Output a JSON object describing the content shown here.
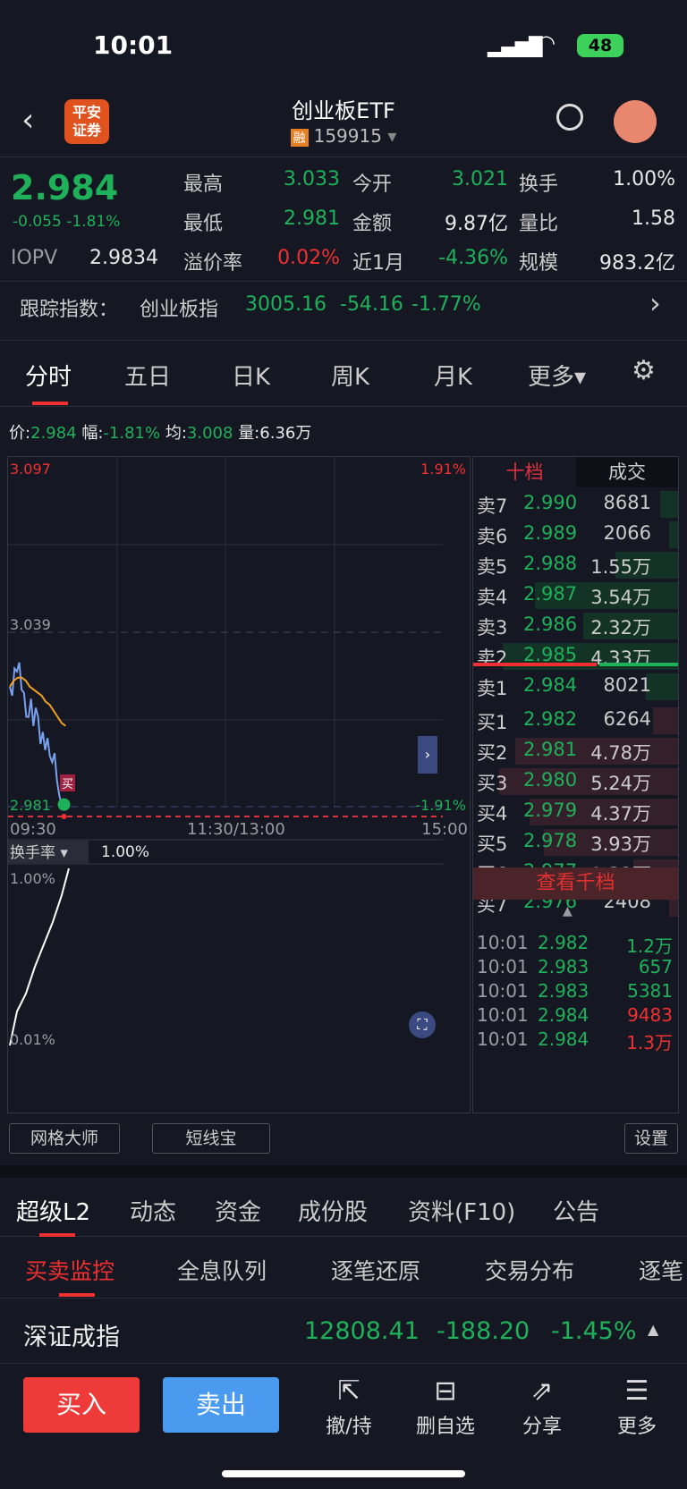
{
  "status": {
    "time": "10:01",
    "battery": "48"
  },
  "header": {
    "broker_logo": "平安证券",
    "title": "创业板ETF",
    "tag": "融",
    "code": "159915"
  },
  "quote": {
    "price": "2.984",
    "change": "-0.055",
    "change_pct": "-1.81%",
    "fields": [
      {
        "label": "最高",
        "value": "3.033",
        "color": "g"
      },
      {
        "label": "今开",
        "value": "3.021",
        "color": "g"
      },
      {
        "label": "换手",
        "value": "1.00%",
        "color": "w"
      },
      {
        "label": "最低",
        "value": "2.981",
        "color": "g"
      },
      {
        "label": "金额",
        "value": "9.87亿",
        "color": "w"
      },
      {
        "label": "量比",
        "value": "1.58",
        "color": "w"
      },
      {
        "label": "溢价率",
        "value": "0.02%",
        "color": "r"
      },
      {
        "label": "近1月",
        "value": "-4.36%",
        "color": "g"
      },
      {
        "label": "规模",
        "value": "983.2亿",
        "color": "w"
      }
    ],
    "iopv_label": "IOPV",
    "iopv": "2.9834"
  },
  "tracking": {
    "label": "跟踪指数：",
    "name": "创业板指",
    "value": "3005.16",
    "change": "-54.16",
    "pct": "-1.77%"
  },
  "tabs": [
    "分时",
    "五日",
    "日K",
    "周K",
    "月K",
    "更多▾"
  ],
  "info": {
    "price_label": "价:",
    "price": "2.984",
    "amp_label": "幅:",
    "amp": "-1.81%",
    "avg_label": "均:",
    "avg": "3.008",
    "vol_label": "量:",
    "vol": "6.36万"
  },
  "chart_data": {
    "type": "line",
    "y_max": "3.097",
    "y_max_pct": "1.91%",
    "y_mid": "3.039",
    "y_min": "2.981",
    "y_min_pct": "-1.91%",
    "ylim": [
      2.981,
      3.097
    ],
    "x_labels": [
      "09:30",
      "11:30/13:00",
      "15:00"
    ],
    "price": [
      3.021,
      3.018,
      3.027,
      3.026,
      3.029,
      3.02,
      3.019,
      3.011,
      3.011,
      3.017,
      3.008,
      3.014,
      3.011,
      3.002,
      3.006,
      3.0,
      3.004,
      2.998,
      2.996,
      2.999,
      2.99,
      2.985,
      2.982,
      2.984
    ],
    "avg": [
      3.021,
      3.023,
      3.024,
      3.024,
      3.023,
      3.021,
      3.02,
      3.019,
      3.018,
      3.016,
      3.015,
      3.013,
      3.011,
      3.009,
      3.008
    ],
    "marker": "买",
    "turnover_label": "换手率 ▾",
    "turnover": "1.00%",
    "turnover_max": "1.00%",
    "turnover_min": "0.01%"
  },
  "book": {
    "tab_depth": "十档",
    "tab_trades": "成交",
    "asks": [
      [
        "卖7",
        "2.990",
        "8681",
        0.1
      ],
      [
        "卖6",
        "2.989",
        "2066",
        0.05
      ],
      [
        "卖5",
        "2.988",
        "1.55万",
        0.35
      ],
      [
        "卖4",
        "2.987",
        "3.54万",
        0.8
      ],
      [
        "卖3",
        "2.986",
        "2.32万",
        0.53
      ],
      [
        "卖2",
        "2.985",
        "4.33万",
        0.98
      ],
      [
        "卖1",
        "2.984",
        "8021",
        0.18
      ]
    ],
    "bids": [
      [
        "买1",
        "2.982",
        "6264",
        0.14
      ],
      [
        "买2",
        "2.981",
        "4.78万",
        0.91
      ],
      [
        "买3",
        "2.980",
        "5.24万",
        1.0
      ],
      [
        "买4",
        "2.979",
        "4.37万",
        0.83
      ],
      [
        "买5",
        "2.978",
        "3.93万",
        0.75
      ],
      [
        "买6",
        "2.977",
        "1.32万",
        0.25
      ],
      [
        "买7",
        "2.976",
        "2408",
        0.05
      ]
    ],
    "more": "查看千档",
    "trades": [
      [
        "10:01",
        "2.982",
        "1.2万",
        "g"
      ],
      [
        "10:01",
        "2.983",
        "657",
        "g"
      ],
      [
        "10:01",
        "2.983",
        "5381",
        "g"
      ],
      [
        "10:01",
        "2.984",
        "9483",
        "r"
      ],
      [
        "10:01",
        "2.984",
        "1.3万",
        "r"
      ]
    ]
  },
  "tools": {
    "grid": "网格大师",
    "short": "短线宝",
    "settings": "设置"
  },
  "sections": [
    "超级L2",
    "动态",
    "资金",
    "成份股",
    "资料(F10)",
    "公告"
  ],
  "subsections": [
    "买卖监控",
    "全息队列",
    "逐笔还原",
    "交易分布",
    "逐笔"
  ],
  "index": {
    "name": "深证成指",
    "value": "12808.41",
    "change": "-188.20",
    "pct": "-1.45%"
  },
  "bottom": {
    "buy": "买入",
    "sell": "卖出",
    "actions": [
      {
        "icon": "⇱",
        "label": "撤/持"
      },
      {
        "icon": "⊟",
        "label": "删自选"
      },
      {
        "icon": "⇗",
        "label": "分享"
      },
      {
        "icon": "☰",
        "label": "更多"
      }
    ]
  }
}
